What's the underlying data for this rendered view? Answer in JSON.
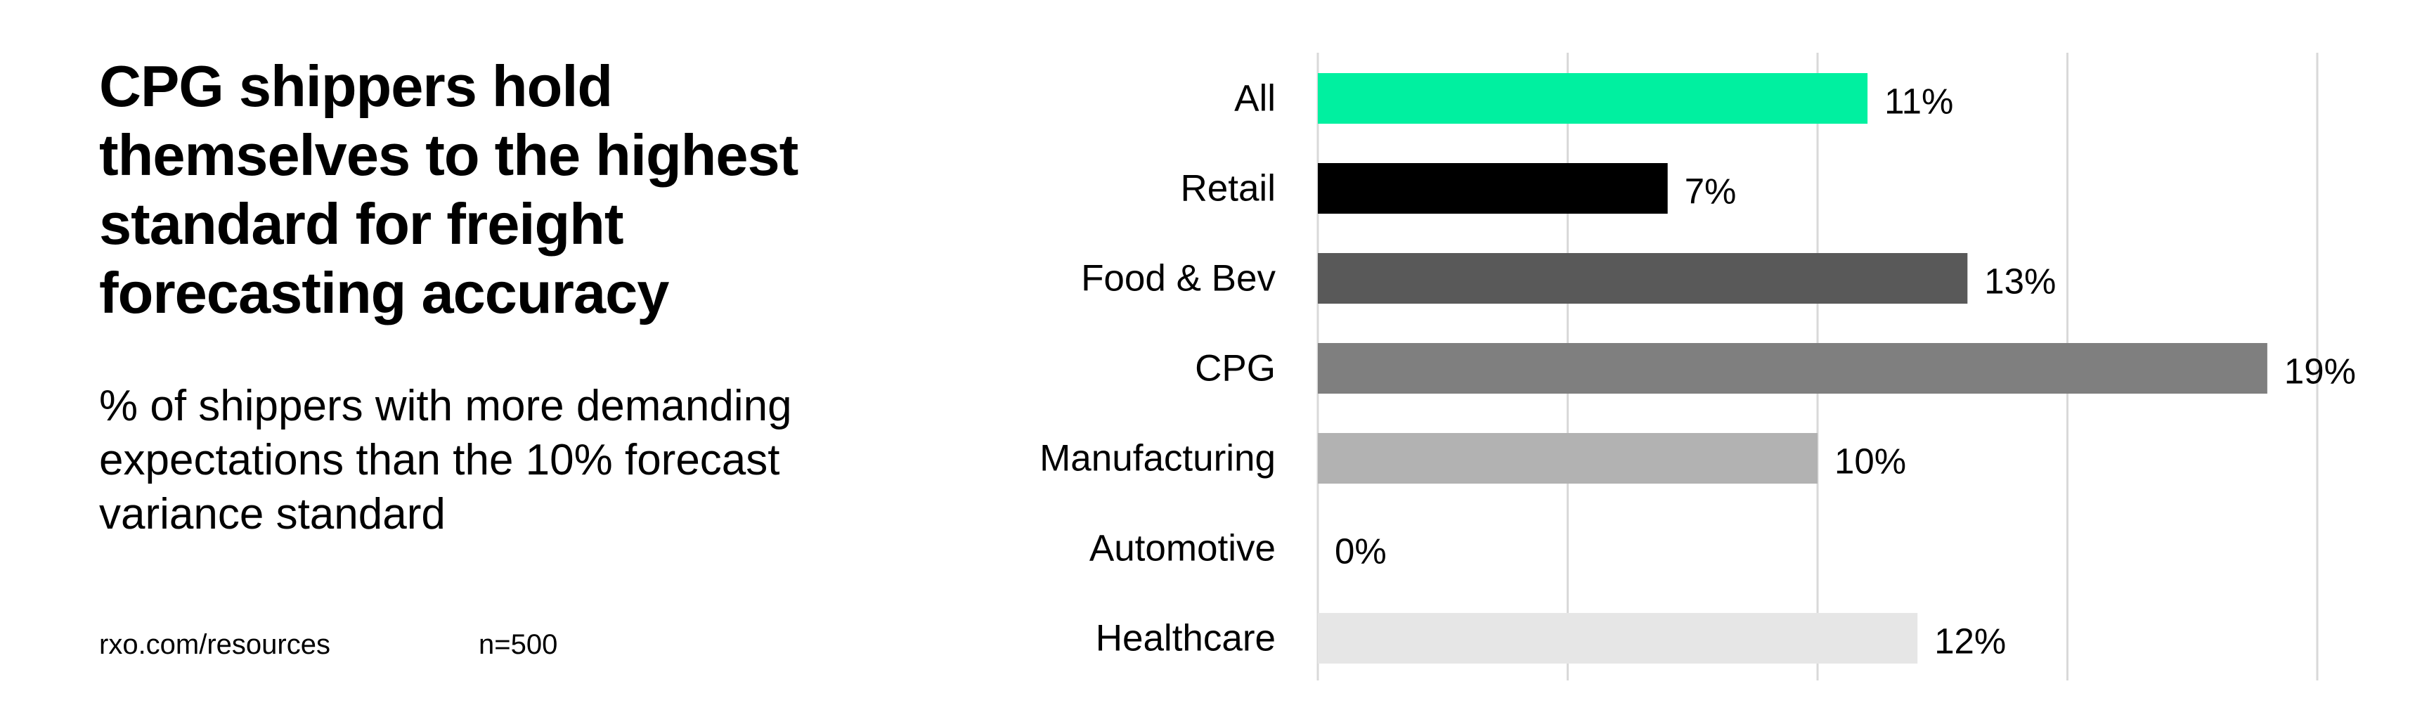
{
  "headline": "CPG shippers hold themselves to the highest standard for freight forecasting accuracy",
  "subtitle": "% of shippers with more demanding expectations than the 10% forecast variance standard",
  "footer": {
    "source": "rxo.com/resources",
    "sample": "n=500"
  },
  "chart_data": {
    "type": "bar",
    "orientation": "horizontal",
    "categories": [
      "All",
      "Retail",
      "Food & Bev",
      "CPG",
      "Manufacturing",
      "Automotive",
      "Healthcare"
    ],
    "values": [
      11,
      7,
      13,
      19,
      10,
      0,
      12
    ],
    "value_labels": [
      "11%",
      "7%",
      "13%",
      "19%",
      "10%",
      "0%",
      "12%"
    ],
    "colors": [
      "#00F0A0",
      "#000000",
      "#595959",
      "#7F7F7F",
      "#B2B2B2",
      "#D9D9D9",
      "#E6E6E6"
    ],
    "xlim": [
      0,
      20
    ],
    "grid": true,
    "grid_values": [
      0,
      5,
      10,
      15,
      20
    ],
    "title": "",
    "xlabel": "",
    "ylabel": ""
  }
}
